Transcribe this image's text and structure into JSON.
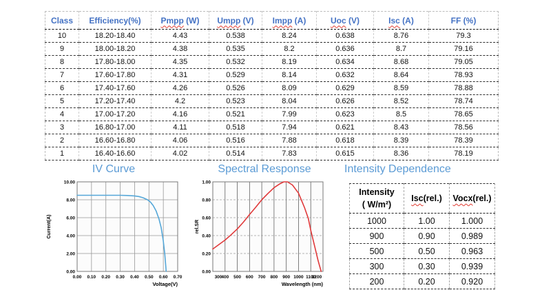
{
  "colors": {
    "header_blue": "#4472c4",
    "title_blue": "#5b9bd5",
    "squiggle_red": "#e0392f",
    "iv_curve_blue": "#55a7d8",
    "sr_curve_red": "#e0393a"
  },
  "main_table": {
    "columns": [
      {
        "word": "Class",
        "unit": "",
        "squiggle": false
      },
      {
        "word": "Efficiency(%)",
        "unit": "",
        "squiggle": false
      },
      {
        "word": "Pmpp",
        "unit": " (W)",
        "squiggle": true
      },
      {
        "word": "Umpp",
        "unit": " (V)",
        "squiggle": true
      },
      {
        "word": "Impp",
        "unit": " (A)",
        "squiggle": true
      },
      {
        "word": "Uoc",
        "unit": " (V)",
        "squiggle": true
      },
      {
        "word": "Isc",
        "unit": " (A)",
        "squiggle": true
      },
      {
        "word": "FF",
        "unit": " (%)",
        "squiggle": false
      }
    ],
    "rows": [
      [
        "10",
        "18.20-18.40",
        "4.43",
        "0.538",
        "8.24",
        "0.638",
        "8.76",
        "79.3"
      ],
      [
        "9",
        "18.00-18.20",
        "4.38",
        "0.535",
        "8.2",
        "0.636",
        "8.7",
        "79.16"
      ],
      [
        "8",
        "17.80-18.00",
        "4.35",
        "0.532",
        "8.19",
        "0.634",
        "8.68",
        "79.05"
      ],
      [
        "7",
        "17.60-17.80",
        "4.31",
        "0.529",
        "8.14",
        "0.632",
        "8.64",
        "78.93"
      ],
      [
        "6",
        "17.40-17.60",
        "4.26",
        "0.526",
        "8.09",
        "0.629",
        "8.59",
        "78.88"
      ],
      [
        "5",
        "17.20-17.40",
        "4.2",
        "0.523",
        "8.04",
        "0.626",
        "8.52",
        "78.74"
      ],
      [
        "4",
        "17.00-17.20",
        "4.16",
        "0.521",
        "7.99",
        "0.623",
        "8.5",
        "78.65"
      ],
      [
        "3",
        "16.80-17.00",
        "4.11",
        "0.518",
        "7.94",
        "0.621",
        "8.43",
        "78.56"
      ],
      [
        "2",
        "16.60-16.80",
        "4.06",
        "0.516",
        "7.88",
        "0.618",
        "8.39",
        "78.39"
      ],
      [
        "1",
        "16.40-16.60",
        "4.02",
        "0.514",
        "7.83",
        "0.615",
        "8.36",
        "78.19"
      ]
    ]
  },
  "sections": {
    "iv_curve": {
      "title": "IV Curve"
    },
    "spectral_response": {
      "title": "Spectral Response"
    },
    "intensity_dependence": {
      "title": "Intensity Dependence"
    }
  },
  "intensity_table": {
    "columns": [
      {
        "word": "Intensity",
        "unit": "",
        "line2": "( W/m²)",
        "squiggle": false
      },
      {
        "word": "Isc",
        "unit": "(rel.)",
        "line2": "",
        "squiggle": true
      },
      {
        "word": "Vocx",
        "unit": "(rel.)",
        "line2": "",
        "squiggle": true
      }
    ],
    "rows": [
      [
        "1000",
        "1.00",
        "1.000"
      ],
      [
        "900",
        "0.90",
        "0.989"
      ],
      [
        "500",
        "0.50",
        "0.963"
      ],
      [
        "300",
        "0.30",
        "0.939"
      ],
      [
        "200",
        "0.20",
        "0.920"
      ]
    ]
  },
  "chart_data": [
    {
      "id": "iv",
      "type": "line",
      "title": "IV Curve",
      "xlabel": "Voltage(V)",
      "ylabel": "Current(A)",
      "xlim": [
        0,
        0.7
      ],
      "ylim": [
        0,
        10
      ],
      "xticks": [
        0.0,
        0.1,
        0.2,
        0.3,
        0.4,
        0.5,
        0.6,
        0.7
      ],
      "xtick_labels": [
        "0.00",
        "0.10",
        "0.20",
        "0.30",
        "0.40",
        "0.50",
        "0.60",
        "0.70"
      ],
      "yticks": [
        0,
        2,
        4,
        6,
        8,
        10
      ],
      "ytick_labels": [
        "0.00",
        "2.00",
        "4.00",
        "6.00",
        "8.00",
        "10.00"
      ],
      "grid": "on",
      "vgrid_color": "#979797",
      "vgrid_dash": "",
      "hgrid_color": "#979797",
      "hgrid_dash": "",
      "clamp_xlabels": false,
      "line_color": "#55a7d8",
      "legend": "none",
      "points": [
        [
          0,
          8.5
        ],
        [
          0.05,
          8.5
        ],
        [
          0.1,
          8.5
        ],
        [
          0.15,
          8.5
        ],
        [
          0.2,
          8.5
        ],
        [
          0.25,
          8.5
        ],
        [
          0.3,
          8.5
        ],
        [
          0.35,
          8.48
        ],
        [
          0.4,
          8.43
        ],
        [
          0.43,
          8.36
        ],
        [
          0.46,
          8.22
        ],
        [
          0.49,
          8.0
        ],
        [
          0.51,
          7.75
        ],
        [
          0.53,
          7.35
        ],
        [
          0.55,
          6.75
        ],
        [
          0.57,
          5.85
        ],
        [
          0.585,
          4.9
        ],
        [
          0.6,
          3.4
        ],
        [
          0.61,
          2.0
        ],
        [
          0.617,
          0.6
        ],
        [
          0.62,
          0
        ]
      ]
    },
    {
      "id": "sr",
      "type": "line",
      "title": "Spectral Response",
      "xlabel": "Wavelength (nm)",
      "ylabel": "rel.SR",
      "xlim": [
        300,
        1200
      ],
      "ylim": [
        0,
        1.0
      ],
      "xticks": [
        300,
        400,
        500,
        600,
        700,
        800,
        900,
        1000,
        1100,
        1200
      ],
      "xtick_labels": [
        "300",
        "400",
        "500",
        "600",
        "700",
        "800",
        "900",
        "1000",
        "1100",
        "1200"
      ],
      "yticks": [
        0,
        0.2,
        0.4,
        0.6,
        0.8,
        1.0
      ],
      "ytick_labels": [
        "0.00",
        "0.20",
        "0.40",
        "0.60",
        "0.80",
        "1.00"
      ],
      "grid": "on",
      "vgrid_color": "#5f5f5f",
      "vgrid_dash": "",
      "hgrid_color": "#9a9a9a",
      "hgrid_dash": "3,2",
      "clamp_xlabels": true,
      "line_color": "#e0393a",
      "legend": "none",
      "points": [
        [
          300,
          0.25
        ],
        [
          350,
          0.3
        ],
        [
          400,
          0.35
        ],
        [
          450,
          0.41
        ],
        [
          500,
          0.475
        ],
        [
          550,
          0.55
        ],
        [
          600,
          0.635
        ],
        [
          650,
          0.715
        ],
        [
          700,
          0.8
        ],
        [
          750,
          0.87
        ],
        [
          800,
          0.935
        ],
        [
          850,
          0.98
        ],
        [
          880,
          1.0
        ],
        [
          910,
          1.0
        ],
        [
          950,
          0.965
        ],
        [
          1000,
          0.875
        ],
        [
          1050,
          0.71
        ],
        [
          1080,
          0.59
        ],
        [
          1100,
          0.46
        ],
        [
          1130,
          0.29
        ],
        [
          1160,
          0.12
        ],
        [
          1185,
          0.0
        ]
      ]
    }
  ]
}
